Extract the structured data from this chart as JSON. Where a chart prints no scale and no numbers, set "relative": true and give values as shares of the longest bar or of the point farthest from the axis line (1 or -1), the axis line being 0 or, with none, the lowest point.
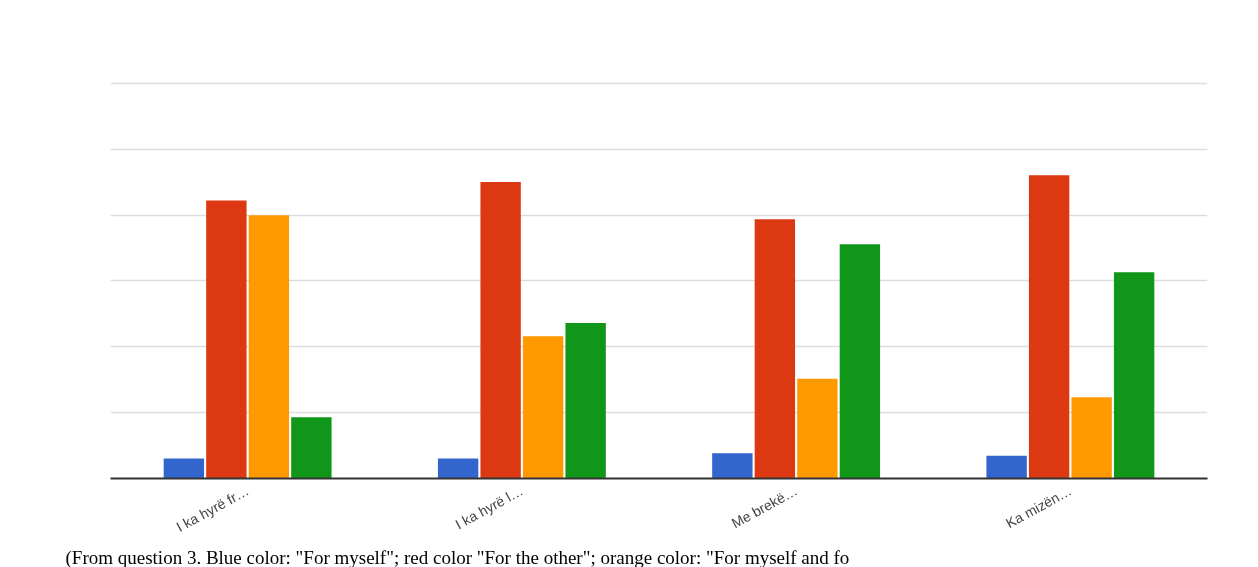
{
  "chart_data": {
    "type": "bar",
    "relative": true,
    "categories": [
      "I ka hyrë fr…",
      "I ka hyrë l…",
      "Me brekë…",
      "Ka mizën…"
    ],
    "series": [
      {
        "color": "#3366cc",
        "values": [
          0.066,
          0.066,
          0.083,
          0.075
        ]
      },
      {
        "color": "#dc3912",
        "values": [
          0.917,
          0.978,
          0.855,
          1
        ]
      },
      {
        "color": "#ff9900",
        "values": [
          0.868,
          0.469,
          0.329,
          0.268
        ]
      },
      {
        "color": "#109618",
        "values": [
          0.202,
          0.513,
          0.772,
          0.68
        ]
      }
    ],
    "grid": "y",
    "tick_labels": "x",
    "annotations": [
      "(From question 3. Blue color: \"For myself\"; red color \"For the other\"; orange color: \"For myself and fo"
    ]
  }
}
